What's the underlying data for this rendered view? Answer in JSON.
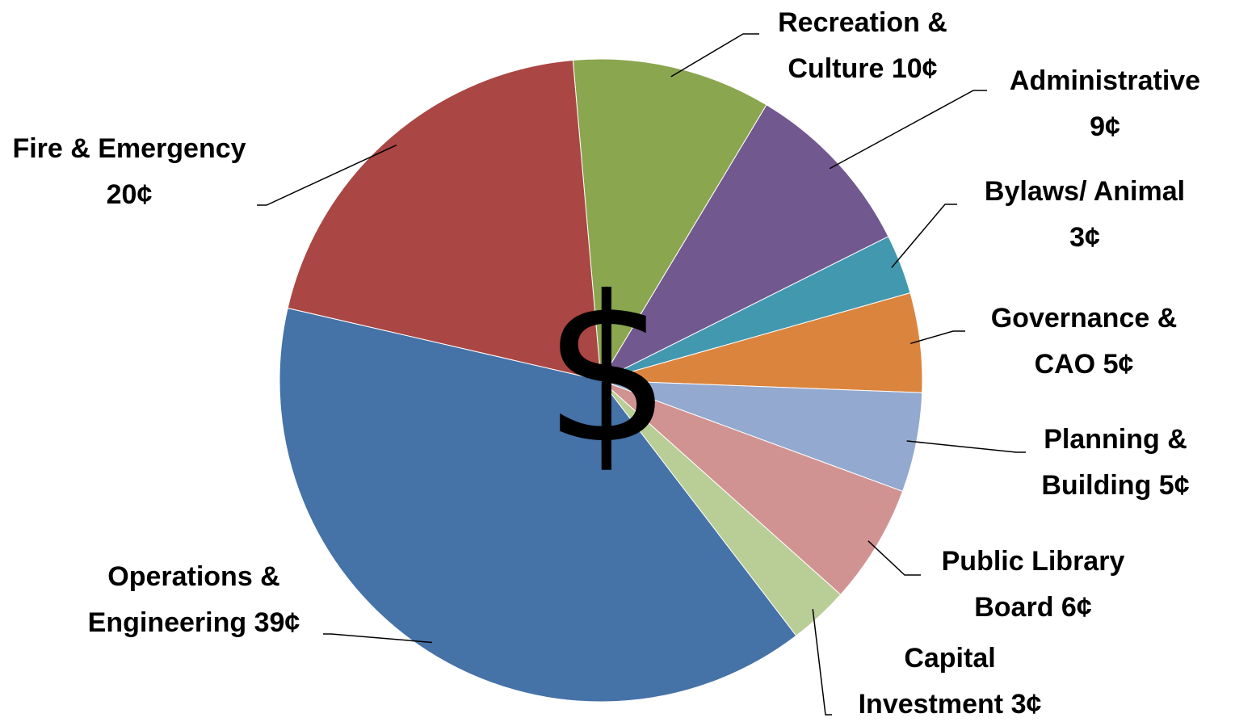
{
  "chart_data": {
    "type": "pie",
    "categories": [
      "Recreation & Culture",
      "Administrative",
      "Bylaws/ Animal",
      "Governance & CAO",
      "Planning & Building",
      "Public Library Board",
      "Capital Investment",
      "Operations & Engineering",
      "Fire & Emergency"
    ],
    "values": [
      10,
      9,
      3,
      5,
      5,
      6,
      3,
      39,
      20
    ],
    "value_labels": [
      "10¢",
      "9¢",
      "3¢",
      "5¢",
      "5¢",
      "6¢",
      "3¢",
      "39¢",
      "20¢"
    ],
    "colors": [
      "#8aa64e",
      "#71588f",
      "#4198af",
      "#db843d",
      "#93a9cf",
      "#d19392",
      "#b9cd96",
      "#4572a7",
      "#aa4643"
    ],
    "center_label": "$"
  }
}
